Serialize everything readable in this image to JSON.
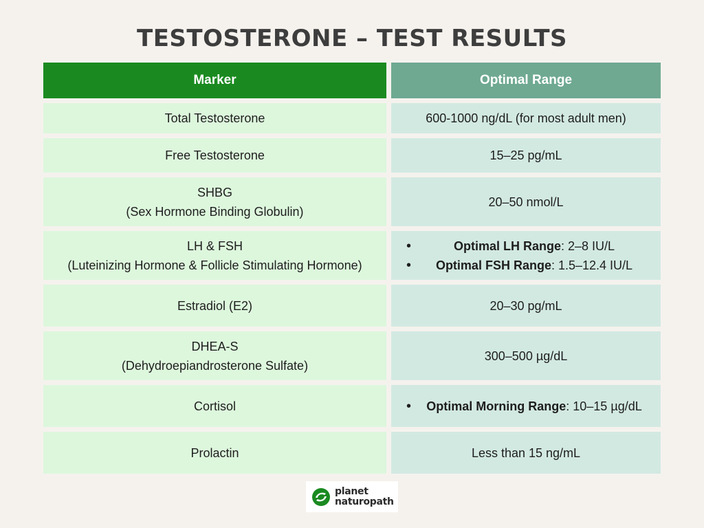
{
  "title": "TESTOSTERONE – TEST RESULTS",
  "header": {
    "marker": "Marker",
    "range": "Optimal Range"
  },
  "rows": [
    {
      "marker": [
        "Total Testosterone"
      ],
      "range_text": "600-1000 ng/dL (for most adult men)"
    },
    {
      "marker": [
        "Free Testosterone"
      ],
      "range_text": "15–25 pg/mL"
    },
    {
      "marker": [
        "SHBG",
        "(Sex Hormone Binding Globulin)"
      ],
      "range_text": "20–50 nmol/L"
    },
    {
      "marker": [
        "LH & FSH",
        "(Luteinizing Hormone & Follicle Stimulating Hormone)"
      ],
      "range_bullets": [
        {
          "label": "Optimal LH Range",
          "value": ": 2–8 IU/L"
        },
        {
          "label": "Optimal FSH Range",
          "value": ": 1.5–12.4 IU/L"
        }
      ]
    },
    {
      "marker": [
        "Estradiol (E2)"
      ],
      "range_text": "20–30 pg/mL"
    },
    {
      "marker": [
        "DHEA-S",
        "(Dehydroepiandrosterone Sulfate)"
      ],
      "range_text": "300–500 µg/dL"
    },
    {
      "marker": [
        "Cortisol"
      ],
      "range_bullets": [
        {
          "label": "Optimal Morning Range",
          "value": ": 10–15 µg/dL"
        }
      ]
    },
    {
      "marker": [
        "Prolactin"
      ],
      "range_text": "Less than 15 ng/mL"
    }
  ],
  "logo": {
    "line1": "planet",
    "line2": "naturopath",
    "icon": "planet-naturopath-logo-icon",
    "colors": {
      "green": "#1a8a20"
    }
  },
  "colors": {
    "header_marker": "#1a8a20",
    "header_range": "#6fa992",
    "cell_marker": "#ddf7dd",
    "cell_range": "#d2e9e2",
    "background": "#f5f2ee"
  }
}
